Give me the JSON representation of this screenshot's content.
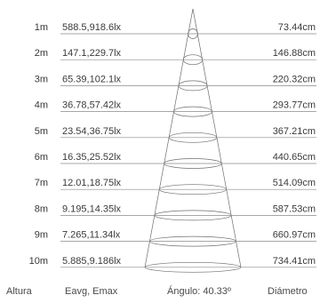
{
  "rows": [
    {
      "height": "1m",
      "illuminance": "588.5,918.6lx",
      "diameter": "73.44cm"
    },
    {
      "height": "2m",
      "illuminance": "147.1,229.7lx",
      "diameter": "146.88cm"
    },
    {
      "height": "3m",
      "illuminance": "65.39,102.1lx",
      "diameter": "220.32cm"
    },
    {
      "height": "4m",
      "illuminance": "36.78,57.42lx",
      "diameter": "293.77cm"
    },
    {
      "height": "5m",
      "illuminance": "23.54,36.75lx",
      "diameter": "367.21cm"
    },
    {
      "height": "6m",
      "illuminance": "16.35,25.52lx",
      "diameter": "440.65cm"
    },
    {
      "height": "7m",
      "illuminance": "12.01,18.75lx",
      "diameter": "514.09cm"
    },
    {
      "height": "8m",
      "illuminance": "9.195,14.35lx",
      "diameter": "587.53cm"
    },
    {
      "height": "9m",
      "illuminance": "7.265,11.34lx",
      "diameter": "660.97cm"
    },
    {
      "height": "10m",
      "illuminance": "5.885,9.186lx",
      "diameter": "734.41cm"
    }
  ],
  "footer": {
    "height_label": "Altura",
    "illuminance_label": "Eavg, Emax",
    "angle_label": "Ángulo: 40.33º",
    "diameter_label": "Diámetro"
  }
}
